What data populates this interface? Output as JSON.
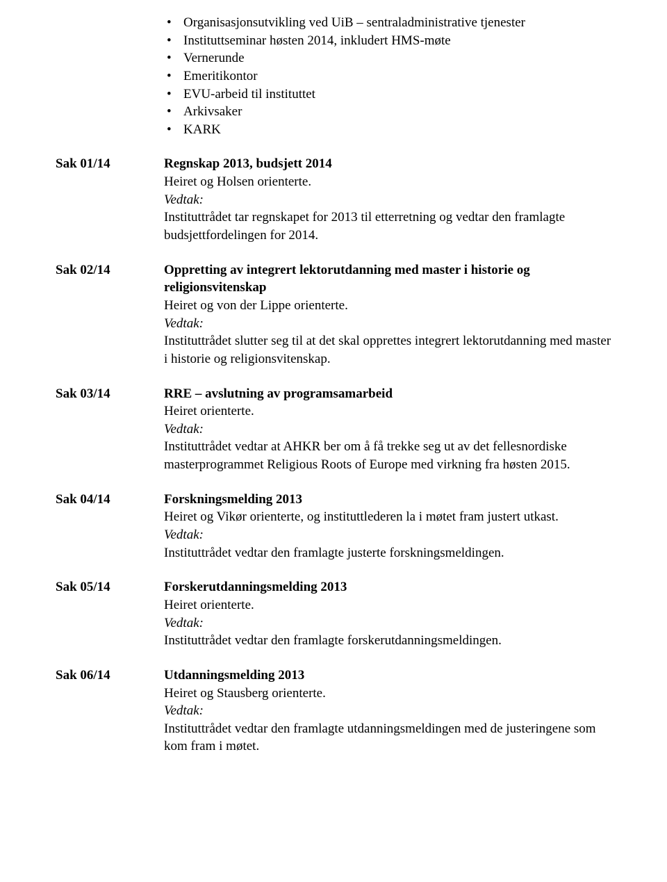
{
  "top_list": [
    "Organisasjonsutvikling ved UiB – sentraladministrative tjenester",
    "Instituttseminar høsten 2014, inkludert HMS-møte",
    "Vernerunde",
    "Emeritikontor",
    "EVU-arbeid til instituttet",
    "Arkivsaker",
    "KARK"
  ],
  "saker": [
    {
      "label": "Sak 01/14",
      "title": "Regnskap 2013, budsjett 2014",
      "pre_text": "Heiret og Holsen orienterte.",
      "vedtak_label": "Vedtak:",
      "post_text": "Instituttrådet tar regnskapet for 2013 til etterretning og vedtar den framlagte budsjettfordelingen for 2014."
    },
    {
      "label": "Sak 02/14",
      "title": "Oppretting av integrert lektorutdanning med master i historie og religionsvitenskap",
      "pre_text": "Heiret og von der Lippe orienterte.",
      "vedtak_label": "Vedtak:",
      "post_text": "Instituttrådet slutter seg til at det skal opprettes integrert lektorutdanning med master i historie og religionsvitenskap."
    },
    {
      "label": "Sak 03/14",
      "title": "RRE – avslutning av programsamarbeid",
      "pre_text": "Heiret orienterte.",
      "vedtak_label": "Vedtak:",
      "post_text": "Instituttrådet vedtar at AHKR ber om å få trekke seg ut av det fellesnordiske masterprogrammet Religious Roots of Europe med virkning fra høsten 2015."
    },
    {
      "label": "Sak 04/14",
      "title": "Forskningsmelding 2013",
      "pre_text": "Heiret og Vikør orienterte, og instituttlederen la i møtet fram justert utkast.",
      "vedtak_label": "Vedtak:",
      "post_text": "Instituttrådet vedtar den framlagte justerte forskningsmeldingen."
    },
    {
      "label": "Sak 05/14",
      "title": "Forskerutdanningsmelding 2013",
      "pre_text": "Heiret orienterte.",
      "vedtak_label": "Vedtak:",
      "post_text": "Instituttrådet vedtar den framlagte forskerutdanningsmeldingen."
    },
    {
      "label": "Sak 06/14",
      "title": "Utdanningsmelding 2013",
      "pre_text": "Heiret og Stausberg orienterte.",
      "vedtak_label": "Vedtak:",
      "post_text": "Instituttrådet vedtar den framlagte utdanningsmeldingen med de justeringene som kom fram i møtet."
    }
  ]
}
